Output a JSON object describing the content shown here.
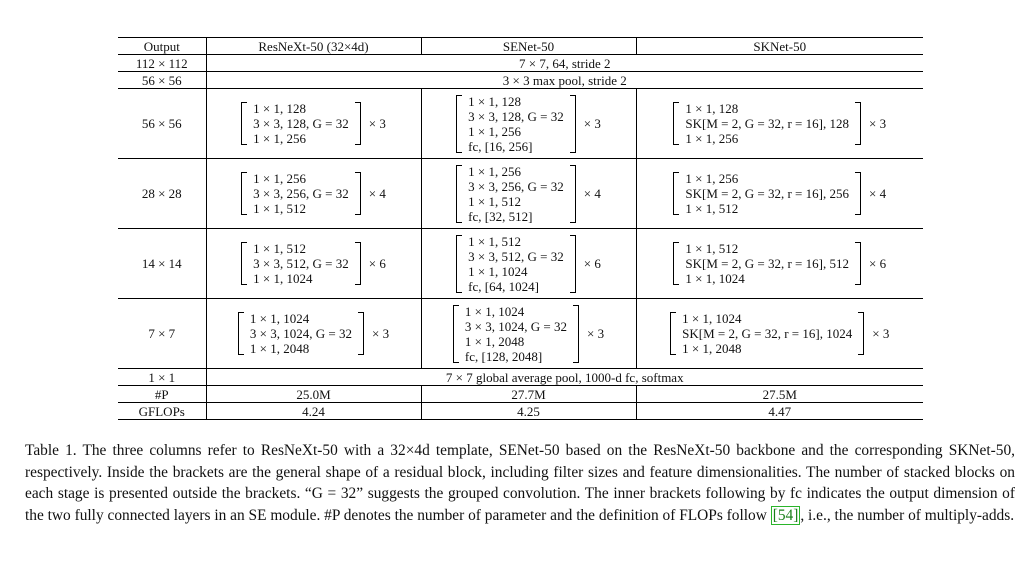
{
  "table": {
    "headers": [
      "Output",
      "ResNeXt-50 (32×4d)",
      "SENet-50",
      "SKNet-50"
    ],
    "stem_rows": [
      {
        "output": "112 × 112",
        "span": "7 × 7, 64, stride 2"
      },
      {
        "output": "56 × 56",
        "span": "3 × 3 max pool, stride 2"
      }
    ],
    "stages": [
      {
        "output": "56 × 56",
        "resnext": [
          "1 × 1, 128",
          "3 × 3, 128, G = 32",
          "1 × 1, 256"
        ],
        "resnext_mult": "× 3",
        "senet": [
          "1 × 1, 128",
          "3 × 3, 128, G = 32",
          "1 × 1, 256",
          "fc, [16, 256]"
        ],
        "senet_mult": "× 3",
        "sknet": [
          "1 × 1, 128",
          "SK[M = 2, G = 32, r = 16], 128",
          "1 × 1, 256"
        ],
        "sknet_mult": "× 3"
      },
      {
        "output": "28 × 28",
        "resnext": [
          "1 × 1, 256",
          "3 × 3, 256, G = 32",
          "1 × 1, 512"
        ],
        "resnext_mult": "× 4",
        "senet": [
          "1 × 1, 256",
          "3 × 3, 256, G = 32",
          "1 × 1, 512",
          "fc, [32, 512]"
        ],
        "senet_mult": "× 4",
        "sknet": [
          "1 × 1, 256",
          "SK[M = 2, G = 32, r = 16], 256",
          "1 × 1, 512"
        ],
        "sknet_mult": "× 4"
      },
      {
        "output": "14 × 14",
        "resnext": [
          "1 × 1, 512",
          "3 × 3, 512, G = 32",
          "1 × 1, 1024"
        ],
        "resnext_mult": "× 6",
        "senet": [
          "1 × 1, 512",
          "3 × 3, 512, G = 32",
          "1 × 1, 1024",
          "fc, [64, 1024]"
        ],
        "senet_mult": "× 6",
        "sknet": [
          "1 × 1, 512",
          "SK[M = 2, G = 32, r = 16], 512",
          "1 × 1, 1024"
        ],
        "sknet_mult": "× 6"
      },
      {
        "output": "7 × 7",
        "resnext": [
          "1 × 1, 1024",
          "3 × 3, 1024, G = 32",
          "1 × 1, 2048"
        ],
        "resnext_mult": "× 3",
        "senet": [
          "1 × 1, 1024",
          "3 × 3, 1024, G = 32",
          "1 × 1, 2048",
          "fc, [128, 2048]"
        ],
        "senet_mult": "× 3",
        "sknet": [
          "1 × 1, 1024",
          "SK[M = 2, G = 32, r = 16], 1024",
          "1 × 1, 2048"
        ],
        "sknet_mult": "× 3"
      }
    ],
    "pool_row": {
      "output": "1 × 1",
      "span": "7 × 7 global average pool, 1000-d fc, softmax"
    },
    "params_row": {
      "label": "#P",
      "values": [
        "25.0M",
        "27.7M",
        "27.5M"
      ]
    },
    "gflops_row": {
      "label": "GFLOPs",
      "values": [
        "4.24",
        "4.25",
        "4.47"
      ]
    }
  },
  "caption": {
    "part1": "Table 1. The three columns refer to ResNeXt-50 with a 32×4d template, SENet-50 based on the ResNeXt-50 backbone and the corresponding SKNet-50, respectively. Inside the brackets are the general shape of a residual block, including filter sizes and feature dimensionalities. The number of stacked blocks on each stage is presented outside the brackets. “G = 32” suggests the grouped convolution. The inner brackets following by fc indicates the output dimension of the two fully connected layers in an SE module. #P denotes the number of parameter and the definition of FLOPs follow ",
    "citation": "[54]",
    "part2": ", i.e., the number of multiply-adds."
  }
}
